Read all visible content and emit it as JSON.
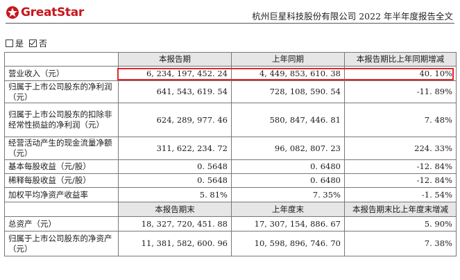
{
  "header": {
    "logo_text": "GreatStar",
    "title": "杭州巨星科技股份有限公司 2022 年半年度报告全文"
  },
  "checkbox": {
    "yes_label": "是",
    "no_label": "否",
    "selected": "否"
  },
  "table1": {
    "headers": [
      "",
      "本报告期",
      "上年同期",
      "本报告期比上年同期增减"
    ],
    "rows": [
      {
        "label": "营业收入（元）",
        "current": "6, 234, 197, 452. 24",
        "prior": "4, 449, 853, 610. 38",
        "change": "40. 10%"
      },
      {
        "label": "归属于上市公司股东的净利润（元）",
        "current": "641, 543, 619. 54",
        "prior": "728, 108, 590. 54",
        "change": "-11. 89%"
      },
      {
        "label": "归属于上市公司股东的扣除非经常性损益的净利润（元）",
        "current": "624, 289, 977. 46",
        "prior": "580, 847, 446. 81",
        "change": "7. 48%"
      },
      {
        "label": "经营活动产生的现金流量净额（元）",
        "current": "311, 622, 234. 72",
        "prior": "96, 082, 807. 23",
        "change": "224. 33%"
      },
      {
        "label": "基本每股收益（元/股）",
        "current": "0. 5648",
        "prior": "0. 6480",
        "change": "-12. 84%"
      },
      {
        "label": "稀释每股收益（元/股）",
        "current": "0. 5648",
        "prior": "0. 6480",
        "change": "-12. 84%"
      },
      {
        "label": "加权平均净资产收益率",
        "current": "5. 81%",
        "prior": "7. 35%",
        "change": "-1. 54%"
      }
    ]
  },
  "table2": {
    "headers": [
      "",
      "本报告期末",
      "上年度末",
      "本报告期末比上年度末增减"
    ],
    "rows": [
      {
        "label": "总资产（元）",
        "current": "18, 327, 720, 451. 88",
        "prior": "17, 307, 154, 886. 67",
        "change": "5. 90%"
      },
      {
        "label": "归属于上市公司股东的净资产（元）",
        "current": "11, 381, 582, 600. 96",
        "prior": "10, 598, 896, 746. 70",
        "change": "7. 38%"
      }
    ]
  }
}
